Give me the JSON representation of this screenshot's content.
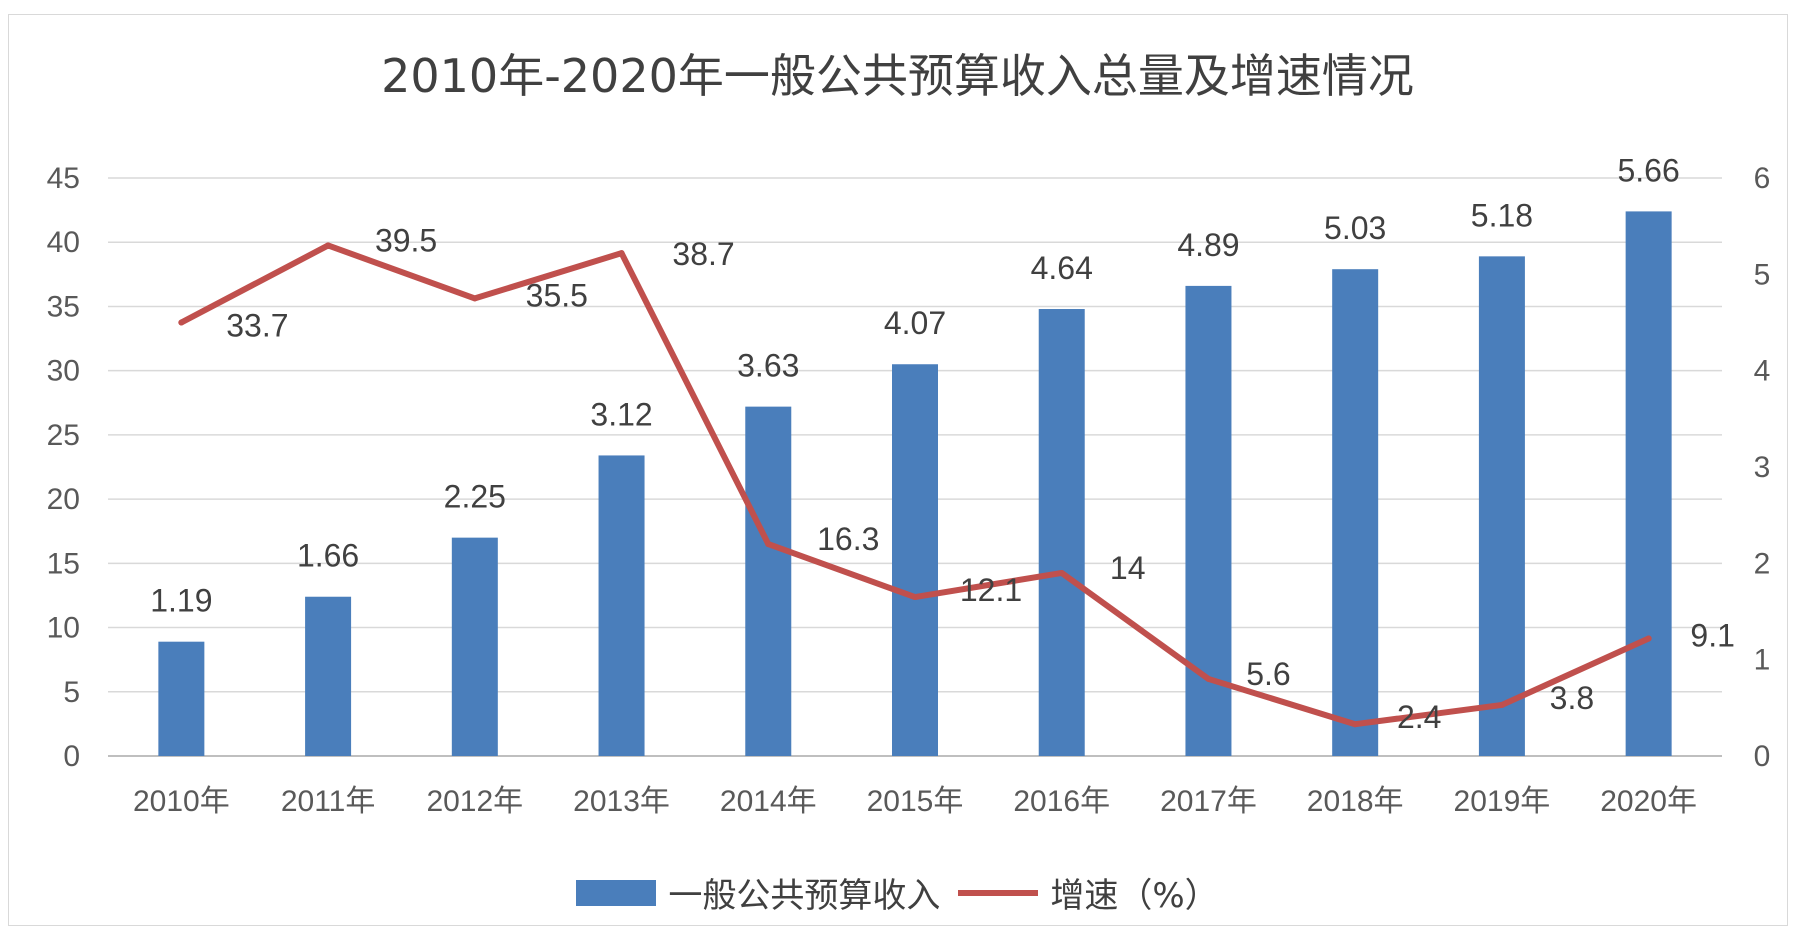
{
  "chart_data": {
    "type": "bar",
    "title": "2010年-2020年一般公共预算收入总量及增速情况",
    "categories": [
      "2010年",
      "2011年",
      "2012年",
      "2013年",
      "2014年",
      "2015年",
      "2016年",
      "2017年",
      "2018年",
      "2019年",
      "2020年"
    ],
    "y_left": {
      "min": 0,
      "max": 45,
      "ticks": [
        "0",
        "5",
        "10",
        "15",
        "20",
        "25",
        "30",
        "35",
        "40",
        "45"
      ]
    },
    "y_right": {
      "min": 0,
      "max": 6,
      "ticks": [
        "0",
        "1",
        "2",
        "3",
        "4",
        "5",
        "6"
      ]
    },
    "grid": true,
    "legend_position": "bottom",
    "series": [
      {
        "name": "一般公共预算收入",
        "kind": "bar",
        "axis": "left",
        "color": "#4a7ebb",
        "values": [
          8.9,
          12.4,
          17.0,
          23.4,
          27.2,
          30.5,
          34.8,
          36.6,
          37.9,
          38.9,
          42.4
        ],
        "labels": [
          "1.19",
          "1.66",
          "2.25",
          "3.12",
          "3.63",
          "4.07",
          "4.64",
          "4.89",
          "5.03",
          "5.18",
          "5.66"
        ]
      },
      {
        "name": "增速（%）",
        "kind": "line",
        "axis": "right",
        "color": "#c0504d",
        "values": [
          4.5,
          5.3,
          4.75,
          5.22,
          2.2,
          1.65,
          1.9,
          0.8,
          0.33,
          0.53,
          1.22
        ],
        "labels": [
          "33.7",
          "39.5",
          "35.5",
          "38.7",
          "16.3",
          "12.1",
          "14",
          "5.6",
          "2.4",
          "3.8",
          "9.1"
        ]
      }
    ]
  }
}
